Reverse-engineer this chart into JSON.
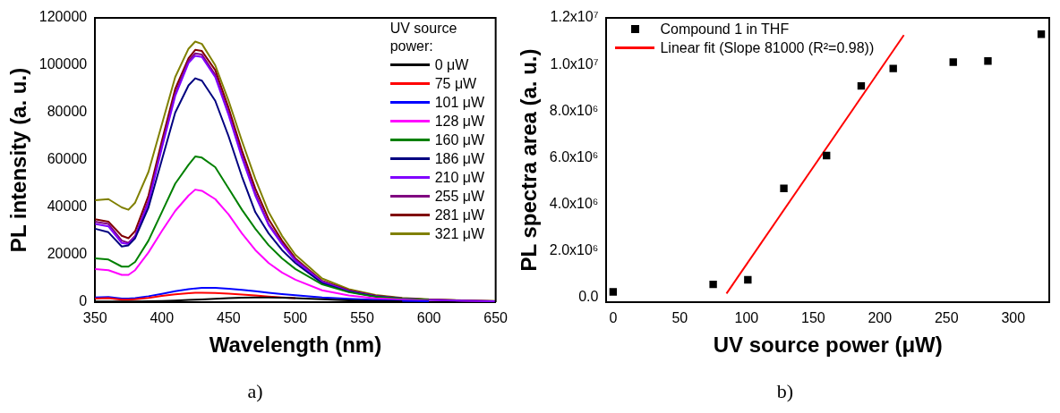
{
  "chart_data": [
    {
      "type": "line",
      "xlabel": "Wavelength (nm)",
      "ylabel": "PL intensity (a. u.)",
      "legend_title": "UV source power:",
      "legend": "top right",
      "grid": false,
      "marker": "none",
      "line_style": "solid",
      "xlim": [
        350,
        650
      ],
      "xticks": [
        350,
        400,
        450,
        500,
        550,
        600,
        650
      ],
      "ylim": [
        0,
        120000
      ],
      "yticks": [
        0,
        20000,
        40000,
        60000,
        80000,
        100000,
        120000
      ],
      "annotations": [
        "a)"
      ],
      "x": [
        350,
        360,
        370,
        375,
        380,
        390,
        400,
        410,
        420,
        425,
        430,
        440,
        450,
        460,
        470,
        480,
        490,
        500,
        520,
        540,
        560,
        580,
        600,
        625,
        650
      ],
      "series": [
        {
          "name": "0 μW",
          "color": "#000000",
          "values": [
            300,
            300,
            300,
            300,
            300,
            400,
            500,
            700,
            900,
            1000,
            1100,
            1400,
            1700,
            1900,
            2000,
            2000,
            1900,
            1700,
            1200,
            800,
            500,
            300,
            null,
            null,
            null
          ]
        },
        {
          "name": "75 μW",
          "color": "#ff0000",
          "values": [
            1500,
            1700,
            1000,
            1000,
            1200,
            1800,
            2600,
            3300,
            3800,
            4000,
            4000,
            3900,
            3600,
            3200,
            2800,
            2400,
            2000,
            1700,
            null,
            null,
            null,
            null,
            null,
            null,
            null
          ]
        },
        {
          "name": "101 μW",
          "color": "#0000ff",
          "values": [
            2000,
            2200,
            1500,
            1500,
            1700,
            2500,
            3500,
            4600,
            5500,
            5800,
            6000,
            6000,
            5700,
            5200,
            4600,
            4000,
            3400,
            2900,
            2000,
            1400,
            900,
            600,
            400,
            null,
            null
          ]
        },
        {
          "name": "128 μW",
          "color": "#ff00ff",
          "values": [
            14000,
            13500,
            11500,
            11500,
            13500,
            21000,
            30000,
            38500,
            45000,
            47500,
            47000,
            43500,
            37000,
            29000,
            22000,
            16500,
            12500,
            9500,
            5000,
            2800,
            1600,
            1000,
            600,
            null,
            null
          ]
        },
        {
          "name": "160 μW",
          "color": "#008000",
          "values": [
            18500,
            18000,
            15000,
            15000,
            17000,
            26000,
            38000,
            50000,
            58000,
            61500,
            61000,
            57000,
            48000,
            39000,
            31000,
            24000,
            18500,
            14000,
            7500,
            4200,
            2300,
            1400,
            900,
            null,
            null
          ]
        },
        {
          "name": "186 μW",
          "color": "#000080",
          "values": [
            31000,
            29500,
            23500,
            24000,
            27000,
            40000,
            60000,
            80000,
            91500,
            94500,
            93500,
            85000,
            70000,
            53000,
            38000,
            29000,
            22000,
            16500,
            8000,
            4400,
            2400,
            1400,
            null,
            null,
            null
          ]
        },
        {
          "name": "210 μW",
          "color": "#8000ff",
          "values": [
            33000,
            32000,
            25000,
            24500,
            27500,
            42000,
            65000,
            87000,
            101000,
            104000,
            103500,
            95000,
            79000,
            61000,
            45000,
            32500,
            24500,
            17500,
            8500,
            4600,
            2500,
            1500,
            900,
            600,
            400
          ]
        },
        {
          "name": "255 μW",
          "color": "#800080",
          "values": [
            34000,
            33000,
            26000,
            25000,
            28000,
            43000,
            66000,
            88000,
            102000,
            105000,
            104500,
            96000,
            80000,
            62000,
            46000,
            33000,
            25000,
            18000,
            8800,
            4800,
            2600,
            1500,
            1000,
            700,
            400
          ]
        },
        {
          "name": "281 μW",
          "color": "#800000",
          "values": [
            35000,
            34000,
            28000,
            27000,
            30000,
            45000,
            68000,
            90000,
            103000,
            106500,
            106000,
            98000,
            82000,
            64000,
            48000,
            35000,
            26000,
            18500,
            9000,
            5000,
            2700,
            1600,
            1000,
            700,
            400
          ]
        },
        {
          "name": "321 μW",
          "color": "#808000",
          "values": [
            43000,
            43500,
            40000,
            39000,
            42000,
            55000,
            75000,
            95000,
            107000,
            110000,
            109000,
            100000,
            85000,
            68000,
            52000,
            38000,
            28000,
            20000,
            10000,
            5500,
            3000,
            1800,
            1200,
            800,
            500
          ]
        }
      ]
    },
    {
      "type": "scatter",
      "xlabel": "UV source power (μW)",
      "ylabel": "PL spectra area (a. u.)",
      "legend": "top left",
      "grid": false,
      "xlim": [
        -5,
        327
      ],
      "xticks": [
        0,
        50,
        100,
        150,
        200,
        250,
        300
      ],
      "ylim": [
        -200000,
        12000000
      ],
      "yticks": [
        {
          "value": 0,
          "label": "0.0"
        },
        {
          "value": 2000000,
          "label": "2.0x10⁶"
        },
        {
          "value": 4000000,
          "label": "4.0x10⁶"
        },
        {
          "value": 6000000,
          "label": "6.0x10⁶"
        },
        {
          "value": 8000000,
          "label": "8.0x10⁶"
        },
        {
          "value": 10000000,
          "label": "1.0x10⁷"
        },
        {
          "value": 12000000,
          "label": "1.2x10⁷"
        }
      ],
      "annotations": [
        "b)"
      ],
      "series": [
        {
          "name": "Compound 1 in THF",
          "type": "scatter",
          "marker": "square",
          "color": "#000000",
          "x": [
            0,
            75,
            101,
            128,
            160,
            186,
            210,
            255,
            281,
            321
          ],
          "values": [
            240000,
            560000,
            760000,
            4680000,
            6090000,
            9080000,
            9830000,
            10100000,
            10150000,
            11300000
          ]
        },
        {
          "name": "Linear fit (Slope 81000 (R²=0.98))",
          "type": "line",
          "marker": "none",
          "line_style": "solid",
          "color": "#ff0000",
          "x": [
            85,
            218
          ],
          "values": [
            170000,
            11260000
          ]
        }
      ]
    }
  ]
}
